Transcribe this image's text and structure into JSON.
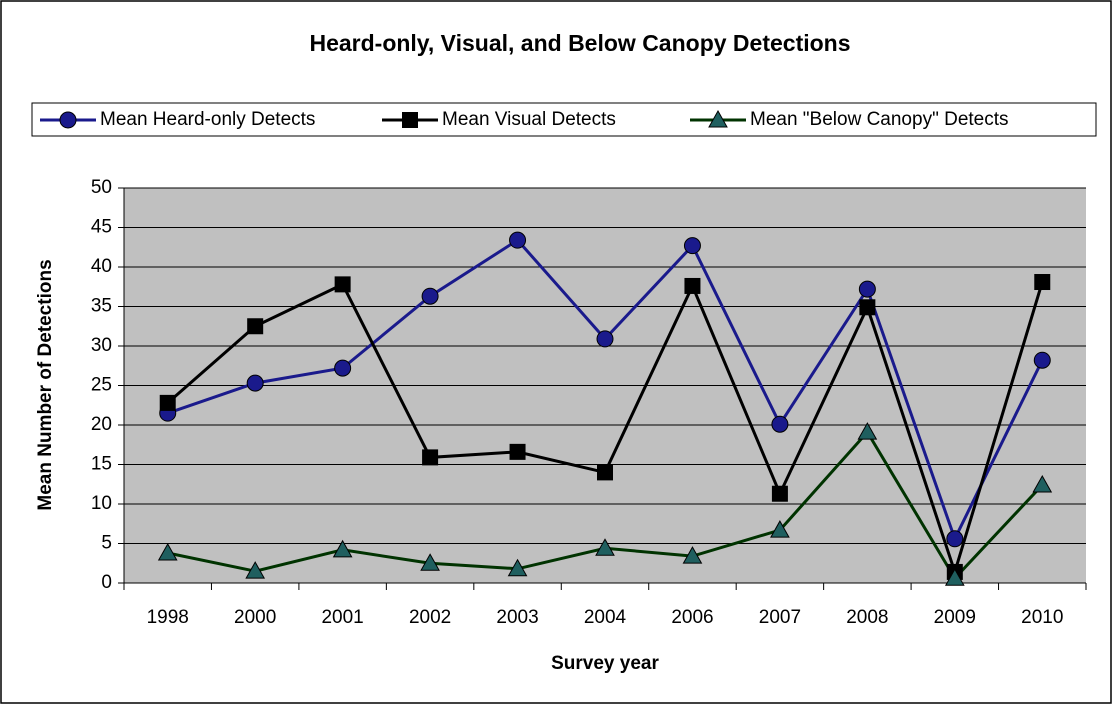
{
  "chart_data": {
    "type": "line",
    "title": "Heard-only, Visual, and Below Canopy Detections",
    "x_label": "Survey year",
    "y_label": "Mean Number of Detections",
    "categories": [
      "1998",
      "2000",
      "2001",
      "2002",
      "2003",
      "2004",
      "2006",
      "2007",
      "2008",
      "2009",
      "2010"
    ],
    "series": [
      {
        "name": "Mean Heard-only Detects",
        "color": "#1a1a8c",
        "marker": "circle",
        "marker_color": "#1a1a8c",
        "values": [
          21.5,
          25.3,
          27.2,
          36.3,
          43.4,
          30.9,
          42.7,
          20.1,
          37.2,
          5.6,
          28.2
        ]
      },
      {
        "name": "Mean  Visual Detects",
        "color": "#000000",
        "marker": "square",
        "marker_color": "#000000",
        "values": [
          22.8,
          32.5,
          37.8,
          15.9,
          16.6,
          14.0,
          37.6,
          11.3,
          34.9,
          1.4,
          38.1
        ]
      },
      {
        "name": "Mean \"Below Canopy\" Detects",
        "color": "#003300",
        "marker": "triangle",
        "marker_color": "#1f5f5f",
        "values": [
          3.8,
          1.5,
          4.2,
          2.5,
          1.8,
          4.4,
          3.4,
          6.7,
          19.1,
          0.6,
          12.4
        ]
      }
    ],
    "ylim": [
      0,
      50
    ],
    "yticks": [
      0,
      5,
      10,
      15,
      20,
      25,
      30,
      35,
      40,
      45,
      50
    ],
    "grid": true,
    "plot_background": "#c0c0c0",
    "legend": "top"
  }
}
